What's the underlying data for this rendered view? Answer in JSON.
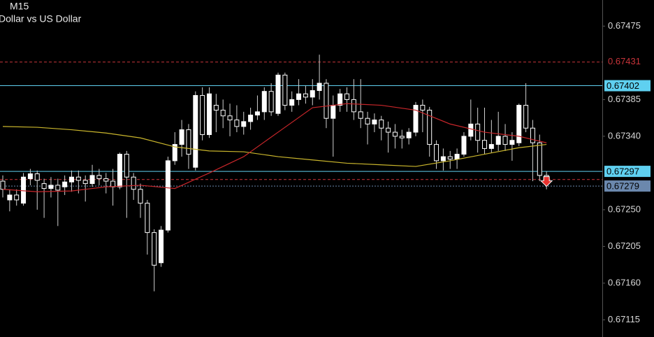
{
  "chart_data": {
    "type": "candlestick",
    "title": "M15",
    "subtitle": "Dollar vs US Dollar",
    "ylim": [
      0.67094,
      0.67507
    ],
    "yticks": [
      0.67475,
      0.67385,
      {
        "value": 0.6734,
        "label": "0.67340"
      },
      {
        "value": 0.6725,
        "label": "0.67250"
      },
      0.67205,
      {
        "value": 0.6716,
        "label": "0.67160"
      },
      0.67115
    ],
    "bull_color": "#ffffff",
    "bear_color": "#000000",
    "candles": [
      {
        "o": 0.67285,
        "h": 0.67292,
        "l": 0.67265,
        "c": 0.67275
      },
      {
        "o": 0.67262,
        "h": 0.67275,
        "l": 0.67248,
        "c": 0.67268
      },
      {
        "o": 0.67268,
        "h": 0.67275,
        "l": 0.67255,
        "c": 0.67262
      },
      {
        "o": 0.67258,
        "h": 0.67295,
        "l": 0.67255,
        "c": 0.6729
      },
      {
        "o": 0.67288,
        "h": 0.673,
        "l": 0.6728,
        "c": 0.67294
      },
      {
        "o": 0.67294,
        "h": 0.67298,
        "l": 0.6725,
        "c": 0.67286
      },
      {
        "o": 0.67282,
        "h": 0.67288,
        "l": 0.6724,
        "c": 0.67276
      },
      {
        "o": 0.67276,
        "h": 0.6729,
        "l": 0.67265,
        "c": 0.6728
      },
      {
        "o": 0.6728,
        "h": 0.67288,
        "l": 0.6723,
        "c": 0.67274
      },
      {
        "o": 0.67278,
        "h": 0.67292,
        "l": 0.67268,
        "c": 0.67284
      },
      {
        "o": 0.67284,
        "h": 0.67298,
        "l": 0.67272,
        "c": 0.6729
      },
      {
        "o": 0.6729,
        "h": 0.67298,
        "l": 0.6727,
        "c": 0.67286
      },
      {
        "o": 0.67286,
        "h": 0.67292,
        "l": 0.6726,
        "c": 0.67282
      },
      {
        "o": 0.67282,
        "h": 0.67305,
        "l": 0.67278,
        "c": 0.67292
      },
      {
        "o": 0.67292,
        "h": 0.673,
        "l": 0.6728,
        "c": 0.67288
      },
      {
        "o": 0.67288,
        "h": 0.67295,
        "l": 0.6727,
        "c": 0.67285
      },
      {
        "o": 0.67285,
        "h": 0.673,
        "l": 0.67255,
        "c": 0.67278
      },
      {
        "o": 0.67278,
        "h": 0.6732,
        "l": 0.67275,
        "c": 0.67318
      },
      {
        "o": 0.67318,
        "h": 0.67322,
        "l": 0.6724,
        "c": 0.6729
      },
      {
        "o": 0.6729,
        "h": 0.67295,
        "l": 0.67262,
        "c": 0.67275
      },
      {
        "o": 0.67275,
        "h": 0.67282,
        "l": 0.6724,
        "c": 0.67258
      },
      {
        "o": 0.67258,
        "h": 0.67262,
        "l": 0.67195,
        "c": 0.67222
      },
      {
        "o": 0.67222,
        "h": 0.67226,
        "l": 0.6715,
        "c": 0.67182
      },
      {
        "o": 0.67185,
        "h": 0.6723,
        "l": 0.6718,
        "c": 0.67225
      },
      {
        "o": 0.67225,
        "h": 0.67315,
        "l": 0.67222,
        "c": 0.6731
      },
      {
        "o": 0.6731,
        "h": 0.67345,
        "l": 0.67305,
        "c": 0.6733
      },
      {
        "o": 0.6733,
        "h": 0.6736,
        "l": 0.67315,
        "c": 0.67348
      },
      {
        "o": 0.67348,
        "h": 0.67355,
        "l": 0.673,
        "c": 0.67318
      },
      {
        "o": 0.67302,
        "h": 0.67395,
        "l": 0.67298,
        "c": 0.6739
      },
      {
        "o": 0.6739,
        "h": 0.674,
        "l": 0.67335,
        "c": 0.67342
      },
      {
        "o": 0.67342,
        "h": 0.674,
        "l": 0.67338,
        "c": 0.67392
      },
      {
        "o": 0.67378,
        "h": 0.67392,
        "l": 0.67345,
        "c": 0.67372
      },
      {
        "o": 0.67372,
        "h": 0.67385,
        "l": 0.6735,
        "c": 0.67365
      },
      {
        "o": 0.67365,
        "h": 0.6738,
        "l": 0.6734,
        "c": 0.6736
      },
      {
        "o": 0.6736,
        "h": 0.67378,
        "l": 0.67345,
        "c": 0.67352
      },
      {
        "o": 0.67352,
        "h": 0.6737,
        "l": 0.67342,
        "c": 0.67358
      },
      {
        "o": 0.67358,
        "h": 0.67375,
        "l": 0.67348,
        "c": 0.67366
      },
      {
        "o": 0.67366,
        "h": 0.6739,
        "l": 0.6736,
        "c": 0.6737
      },
      {
        "o": 0.6737,
        "h": 0.674,
        "l": 0.6736,
        "c": 0.67395
      },
      {
        "o": 0.67395,
        "h": 0.67405,
        "l": 0.67365,
        "c": 0.6737
      },
      {
        "o": 0.67368,
        "h": 0.67418,
        "l": 0.67365,
        "c": 0.67415
      },
      {
        "o": 0.67415,
        "h": 0.67418,
        "l": 0.67372,
        "c": 0.67378
      },
      {
        "o": 0.67378,
        "h": 0.67395,
        "l": 0.6737,
        "c": 0.67385
      },
      {
        "o": 0.67385,
        "h": 0.6741,
        "l": 0.67378,
        "c": 0.67392
      },
      {
        "o": 0.67392,
        "h": 0.67402,
        "l": 0.6738,
        "c": 0.67388
      },
      {
        "o": 0.67388,
        "h": 0.6741,
        "l": 0.67378,
        "c": 0.67396
      },
      {
        "o": 0.67396,
        "h": 0.6744,
        "l": 0.67385,
        "c": 0.67405
      },
      {
        "o": 0.67405,
        "h": 0.6741,
        "l": 0.6735,
        "c": 0.67362
      },
      {
        "o": 0.67362,
        "h": 0.6739,
        "l": 0.67315,
        "c": 0.67378
      },
      {
        "o": 0.67378,
        "h": 0.67398,
        "l": 0.6737,
        "c": 0.67392
      },
      {
        "o": 0.67392,
        "h": 0.674,
        "l": 0.6737,
        "c": 0.67385
      },
      {
        "o": 0.67385,
        "h": 0.6741,
        "l": 0.6736,
        "c": 0.6737
      },
      {
        "o": 0.6737,
        "h": 0.6741,
        "l": 0.6735,
        "c": 0.67362
      },
      {
        "o": 0.67362,
        "h": 0.6737,
        "l": 0.6733,
        "c": 0.67355
      },
      {
        "o": 0.67355,
        "h": 0.67368,
        "l": 0.67345,
        "c": 0.6736
      },
      {
        "o": 0.6736,
        "h": 0.67365,
        "l": 0.67335,
        "c": 0.6735
      },
      {
        "o": 0.6735,
        "h": 0.67358,
        "l": 0.6732,
        "c": 0.67345
      },
      {
        "o": 0.67345,
        "h": 0.67355,
        "l": 0.67325,
        "c": 0.6734
      },
      {
        "o": 0.6734,
        "h": 0.67348,
        "l": 0.67325,
        "c": 0.67338
      },
      {
        "o": 0.67338,
        "h": 0.6735,
        "l": 0.6733,
        "c": 0.67345
      },
      {
        "o": 0.67345,
        "h": 0.67382,
        "l": 0.6734,
        "c": 0.67378
      },
      {
        "o": 0.67378,
        "h": 0.67385,
        "l": 0.67345,
        "c": 0.67372
      },
      {
        "o": 0.67372,
        "h": 0.67376,
        "l": 0.67315,
        "c": 0.6733
      },
      {
        "o": 0.6733,
        "h": 0.67335,
        "l": 0.673,
        "c": 0.6731
      },
      {
        "o": 0.6731,
        "h": 0.67325,
        "l": 0.67298,
        "c": 0.67315
      },
      {
        "o": 0.67315,
        "h": 0.67322,
        "l": 0.673,
        "c": 0.67312
      },
      {
        "o": 0.67312,
        "h": 0.67325,
        "l": 0.673,
        "c": 0.67318
      },
      {
        "o": 0.67318,
        "h": 0.67345,
        "l": 0.67315,
        "c": 0.6734
      },
      {
        "o": 0.6734,
        "h": 0.67385,
        "l": 0.67335,
        "c": 0.67355
      },
      {
        "o": 0.67355,
        "h": 0.67375,
        "l": 0.6732,
        "c": 0.67335
      },
      {
        "o": 0.67335,
        "h": 0.67375,
        "l": 0.67318,
        "c": 0.67325
      },
      {
        "o": 0.67325,
        "h": 0.6736,
        "l": 0.6732,
        "c": 0.6733
      },
      {
        "o": 0.6733,
        "h": 0.6737,
        "l": 0.67322,
        "c": 0.6734
      },
      {
        "o": 0.6734,
        "h": 0.67355,
        "l": 0.67322,
        "c": 0.6733
      },
      {
        "o": 0.6733,
        "h": 0.67345,
        "l": 0.6731,
        "c": 0.67335
      },
      {
        "o": 0.67332,
        "h": 0.6738,
        "l": 0.67328,
        "c": 0.67378
      },
      {
        "o": 0.67378,
        "h": 0.67405,
        "l": 0.67345,
        "c": 0.6735
      },
      {
        "o": 0.6735,
        "h": 0.6736,
        "l": 0.67285,
        "c": 0.67332
      },
      {
        "o": 0.67332,
        "h": 0.67342,
        "l": 0.67285,
        "c": 0.67292
      },
      {
        "o": 0.67292,
        "h": 0.67297,
        "l": 0.67275,
        "c": 0.67282
      }
    ],
    "moving_averages": [
      {
        "color": "#c9b52c",
        "index": [
          0,
          5,
          10,
          15,
          20,
          25,
          30,
          35,
          40,
          45,
          50,
          55,
          60,
          65,
          70,
          75,
          79
        ],
        "values": [
          0.67352,
          0.67351,
          0.67348,
          0.67344,
          0.67338,
          0.67327,
          0.67322,
          0.67321,
          0.67315,
          0.67311,
          0.67307,
          0.67305,
          0.67303,
          0.6731,
          0.67318,
          0.67326,
          0.6733
        ]
      },
      {
        "color": "#c8262a",
        "index": [
          0,
          5,
          10,
          15,
          20,
          25,
          30,
          35,
          40,
          45,
          50,
          55,
          60,
          65,
          70,
          75,
          79
        ],
        "values": [
          0.67275,
          0.67272,
          0.67273,
          0.67278,
          0.6728,
          0.67276,
          0.67295,
          0.67315,
          0.67345,
          0.67375,
          0.6738,
          0.67378,
          0.67372,
          0.67355,
          0.67345,
          0.6734,
          0.67332
        ]
      }
    ],
    "levels": [
      {
        "value": 0.67431,
        "color": "#c8343a",
        "style": "dashed",
        "label_style": "text"
      },
      {
        "value": 0.67402,
        "color": "#5fd0f0",
        "style": "solid",
        "label_style": "box"
      },
      {
        "value": 0.67297,
        "color": "#5fd0f0",
        "style": "solid",
        "label_style": "box"
      },
      {
        "value": 0.67287,
        "color": "#d0343a",
        "style": "dashed",
        "label_style": "none"
      },
      {
        "value": 0.67279,
        "color": "#6b88ad",
        "style": "dotted",
        "label_style": "box"
      }
    ]
  }
}
